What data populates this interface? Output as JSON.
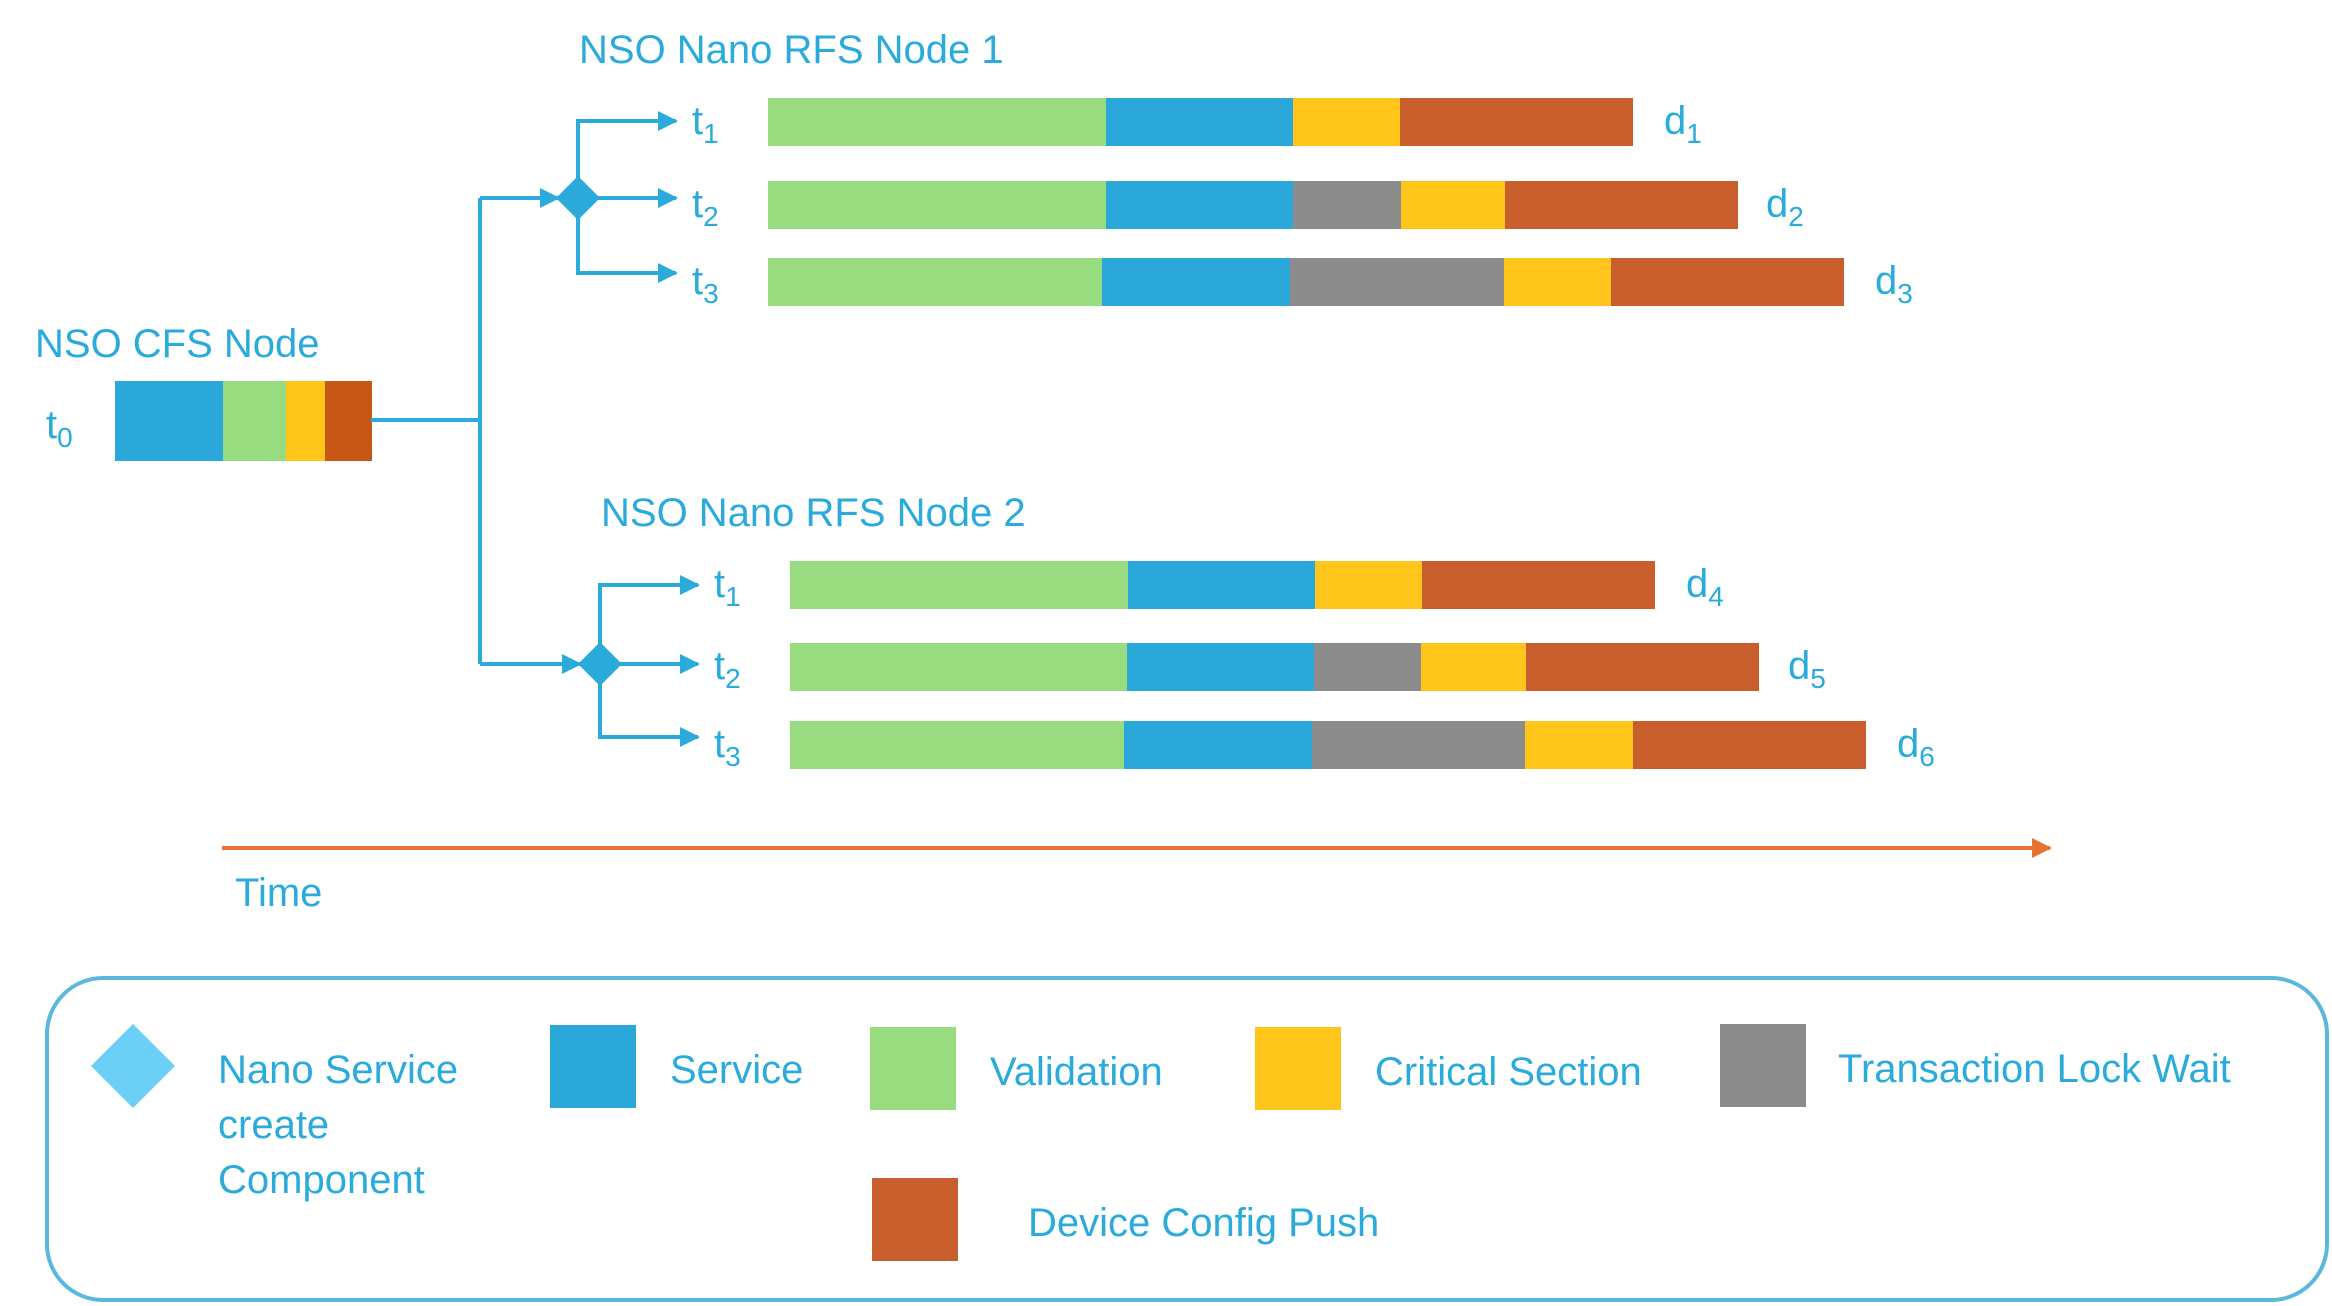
{
  "colors": {
    "accent": "#2AABDB",
    "text": "#2AABDB",
    "time_arrow": "#E57433",
    "legend_border": "#5AB8DD",
    "segments": {
      "service": "#29A8D9",
      "validation": "#98DC7F",
      "critical": "#FFC51A",
      "lock": "#8C8C8C",
      "push": "#C85E2C",
      "push_cfs": "#C75714"
    },
    "diamond_node": "#2AABDB",
    "diamond_legend": "#6BCFF6"
  },
  "cfs": {
    "title": "NSO CFS Node",
    "row_label": {
      "base": "t",
      "sub": "0"
    },
    "segments": [
      "service",
      "validation",
      "critical",
      "push_cfs"
    ]
  },
  "rfs_nodes": [
    {
      "title": "NSO Nano RFS Node 1",
      "rows": [
        {
          "label": {
            "base": "t",
            "sub": "1"
          },
          "end": {
            "base": "d",
            "sub": "1"
          },
          "segments": [
            "validation",
            "service",
            "critical",
            "push"
          ]
        },
        {
          "label": {
            "base": "t",
            "sub": "2"
          },
          "end": {
            "base": "d",
            "sub": "2"
          },
          "segments": [
            "validation",
            "service",
            "lock",
            "critical",
            "push"
          ]
        },
        {
          "label": {
            "base": "t",
            "sub": "3"
          },
          "end": {
            "base": "d",
            "sub": "3"
          },
          "segments": [
            "validation",
            "service",
            "lock",
            "critical",
            "push"
          ]
        }
      ]
    },
    {
      "title": "NSO Nano RFS Node 2",
      "rows": [
        {
          "label": {
            "base": "t",
            "sub": "1"
          },
          "end": {
            "base": "d",
            "sub": "4"
          },
          "segments": [
            "validation",
            "service",
            "critical",
            "push"
          ]
        },
        {
          "label": {
            "base": "t",
            "sub": "2"
          },
          "end": {
            "base": "d",
            "sub": "5"
          },
          "segments": [
            "validation",
            "service",
            "lock",
            "critical",
            "push"
          ]
        },
        {
          "label": {
            "base": "t",
            "sub": "3"
          },
          "end": {
            "base": "d",
            "sub": "6"
          },
          "segments": [
            "validation",
            "service",
            "lock",
            "critical",
            "push"
          ]
        }
      ]
    }
  ],
  "time_label": "Time",
  "legend": {
    "items": [
      {
        "shape": "diamond",
        "lines": [
          "Nano Service",
          "create",
          "Component"
        ]
      },
      {
        "shape": "square",
        "color_key": "service",
        "lines": [
          "Service"
        ]
      },
      {
        "shape": "square",
        "color_key": "validation",
        "lines": [
          "Validation"
        ]
      },
      {
        "shape": "square",
        "color_key": "critical",
        "lines": [
          "Critical Section"
        ]
      },
      {
        "shape": "square",
        "color_key": "lock",
        "lines": [
          "Transaction Lock Wait"
        ]
      },
      {
        "shape": "square",
        "color_key": "push",
        "lines": [
          "Device Config Push"
        ]
      }
    ]
  }
}
